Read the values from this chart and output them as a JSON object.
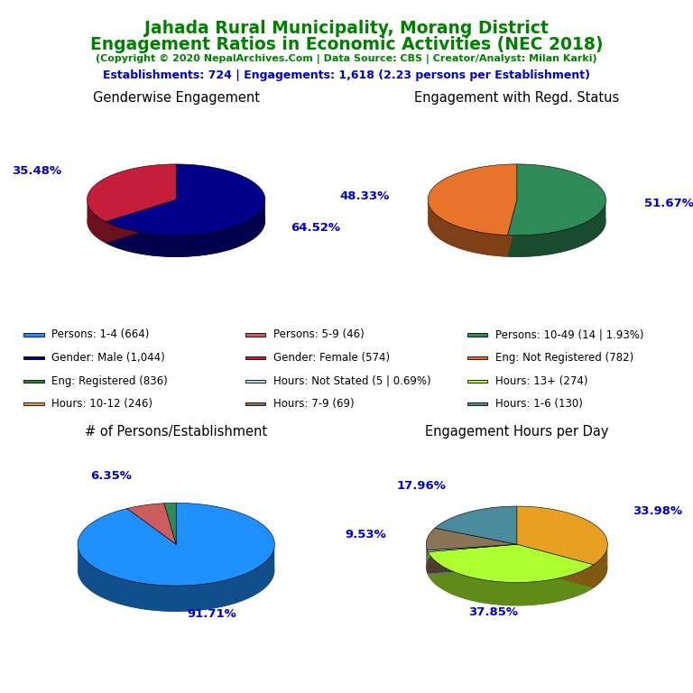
{
  "title_line1": "Jahada Rural Municipality, Morang District",
  "title_line2": "Engagement Ratios in Economic Activities (NEC 2018)",
  "subtitle": "(Copyright © 2020 NepalArchives.Com | Data Source: CBS | Creator/Analyst: Milan Karki)",
  "stats_line": "Establishments: 724 | Engagements: 1,618 (2.23 persons per Establishment)",
  "title_color": "#008000",
  "subtitle_color": "#008000",
  "stats_color": "#0000CD",
  "pie1_title": "Genderwise Engagement",
  "pie1_values": [
    64.52,
    35.48
  ],
  "pie1_colors": [
    "#00008B",
    "#C41E3A"
  ],
  "pie1_labels": [
    "64.52%",
    "35.48%"
  ],
  "pie2_title": "Engagement with Regd. Status",
  "pie2_values": [
    51.67,
    48.33
  ],
  "pie2_colors": [
    "#2E8B57",
    "#E8732A"
  ],
  "pie2_labels": [
    "51.67%",
    "48.33%"
  ],
  "pie3_title": "# of Persons/Establishment",
  "pie3_values": [
    91.71,
    6.35,
    1.94
  ],
  "pie3_colors": [
    "#1E90FF",
    "#CD5C5C",
    "#2E8B57"
  ],
  "pie3_labels": [
    "91.71%",
    "6.35%",
    ""
  ],
  "pie4_title": "Engagement Hours per Day",
  "pie4_values": [
    33.98,
    37.85,
    0.69,
    9.53,
    17.96
  ],
  "pie4_colors": [
    "#E8A020",
    "#ADFF2F",
    "#ADD8E6",
    "#8B7355",
    "#4A8B9E"
  ],
  "pie4_labels": [
    "33.98%",
    "37.85%",
    "",
    "9.53%",
    "17.96%"
  ],
  "legend_items": [
    {
      "label": "Persons: 1-4 (664)",
      "color": "#1E90FF"
    },
    {
      "label": "Persons: 5-9 (46)",
      "color": "#CD5C5C"
    },
    {
      "label": "Persons: 10-49 (14 | 1.93%)",
      "color": "#2E8B57"
    },
    {
      "label": "Gender: Male (1,044)",
      "color": "#00008B"
    },
    {
      "label": "Gender: Female (574)",
      "color": "#C41E3A"
    },
    {
      "label": "Eng: Not Registered (782)",
      "color": "#E8732A"
    },
    {
      "label": "Eng: Registered (836)",
      "color": "#228B22"
    },
    {
      "label": "Hours: Not Stated (5 | 0.69%)",
      "color": "#ADD8E6"
    },
    {
      "label": "Hours: 13+ (274)",
      "color": "#ADFF2F"
    },
    {
      "label": "Hours: 10-12 (246)",
      "color": "#E8A020"
    },
    {
      "label": "Hours: 7-9 (69)",
      "color": "#8B7355"
    },
    {
      "label": "Hours: 1-6 (130)",
      "color": "#4A8B9E"
    }
  ],
  "label_color": "#0000CD",
  "bg_color": "#FFFFFF"
}
